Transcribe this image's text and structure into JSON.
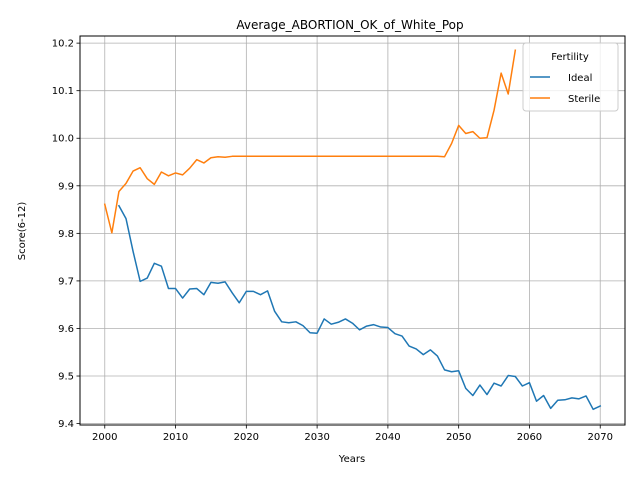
{
  "chart_data": {
    "type": "line",
    "title": "Average_ABORTION_OK_of_White_Pop",
    "xlabel": "Years",
    "ylabel": "Score(6-12)",
    "xlim": [
      1996.5,
      2073.5
    ],
    "ylim": [
      9.397,
      10.215
    ],
    "xticks": [
      2000,
      2010,
      2020,
      2030,
      2040,
      2050,
      2060,
      2070
    ],
    "yticks": [
      9.4,
      9.5,
      9.6,
      9.7,
      9.8,
      9.9,
      10.0,
      10.1,
      10.2
    ],
    "grid": true,
    "legend": {
      "title": "Fertility",
      "placement": "top-right"
    },
    "series": [
      {
        "name": "Ideal",
        "color": "#1f77b4",
        "x": [
          2002,
          2003,
          2004,
          2005,
          2006,
          2007,
          2008,
          2009,
          2010,
          2011,
          2012,
          2013,
          2014,
          2015,
          2016,
          2017,
          2018,
          2019,
          2020,
          2021,
          2022,
          2023,
          2024,
          2025,
          2026,
          2027,
          2028,
          2029,
          2030,
          2031,
          2032,
          2033,
          2034,
          2035,
          2036,
          2037,
          2038,
          2039,
          2040,
          2041,
          2042,
          2043,
          2044,
          2045,
          2046,
          2047,
          2048,
          2049,
          2050,
          2051,
          2052,
          2053,
          2054,
          2055,
          2056,
          2057,
          2058,
          2059,
          2060,
          2061,
          2062,
          2063,
          2064,
          2065,
          2066,
          2067,
          2068,
          2069,
          2070
        ],
        "values": [
          9.858,
          9.831,
          9.762,
          9.699,
          9.706,
          9.737,
          9.731,
          9.684,
          9.684,
          9.664,
          9.683,
          9.684,
          9.671,
          9.697,
          9.695,
          9.698,
          9.675,
          9.654,
          9.678,
          9.678,
          9.671,
          9.679,
          9.636,
          9.614,
          9.612,
          9.614,
          9.606,
          9.591,
          9.59,
          9.62,
          9.609,
          9.613,
          9.62,
          9.611,
          9.597,
          9.605,
          9.608,
          9.603,
          9.602,
          9.589,
          9.584,
          9.563,
          9.557,
          9.545,
          9.555,
          9.542,
          9.513,
          9.509,
          9.511,
          9.474,
          9.459,
          9.481,
          9.461,
          9.485,
          9.479,
          9.501,
          9.499,
          9.479,
          9.486,
          9.447,
          9.459,
          9.432,
          9.449,
          9.45,
          9.454,
          9.452,
          9.458,
          9.43,
          9.437
        ]
      },
      {
        "name": "Sterile",
        "color": "#ff7f0e",
        "x": [
          2000,
          2001,
          2002,
          2003,
          2004,
          2005,
          2006,
          2007,
          2008,
          2009,
          2010,
          2011,
          2012,
          2013,
          2014,
          2015,
          2016,
          2017,
          2018,
          2019,
          2020,
          2021,
          2022,
          2023,
          2024,
          2025,
          2026,
          2027,
          2028,
          2029,
          2030,
          2031,
          2032,
          2033,
          2034,
          2035,
          2036,
          2037,
          2038,
          2039,
          2040,
          2041,
          2042,
          2043,
          2044,
          2045,
          2046,
          2047,
          2048,
          2049,
          2050,
          2051,
          2052,
          2053,
          2054,
          2055,
          2056,
          2057,
          2058
        ],
        "values": [
          9.861,
          9.801,
          9.888,
          9.905,
          9.931,
          9.938,
          9.915,
          9.903,
          9.929,
          9.921,
          9.927,
          9.923,
          9.937,
          9.955,
          9.948,
          9.959,
          9.961,
          9.96,
          9.962,
          9.962,
          9.962,
          9.962,
          9.962,
          9.962,
          9.962,
          9.962,
          9.962,
          9.962,
          9.962,
          9.962,
          9.962,
          9.962,
          9.962,
          9.962,
          9.962,
          9.962,
          9.962,
          9.962,
          9.962,
          9.962,
          9.962,
          9.962,
          9.962,
          9.962,
          9.962,
          9.962,
          9.962,
          9.962,
          9.961,
          9.989,
          10.027,
          10.01,
          10.014,
          10.0,
          10.001,
          10.059,
          10.137,
          10.093,
          10.185
        ]
      }
    ]
  }
}
